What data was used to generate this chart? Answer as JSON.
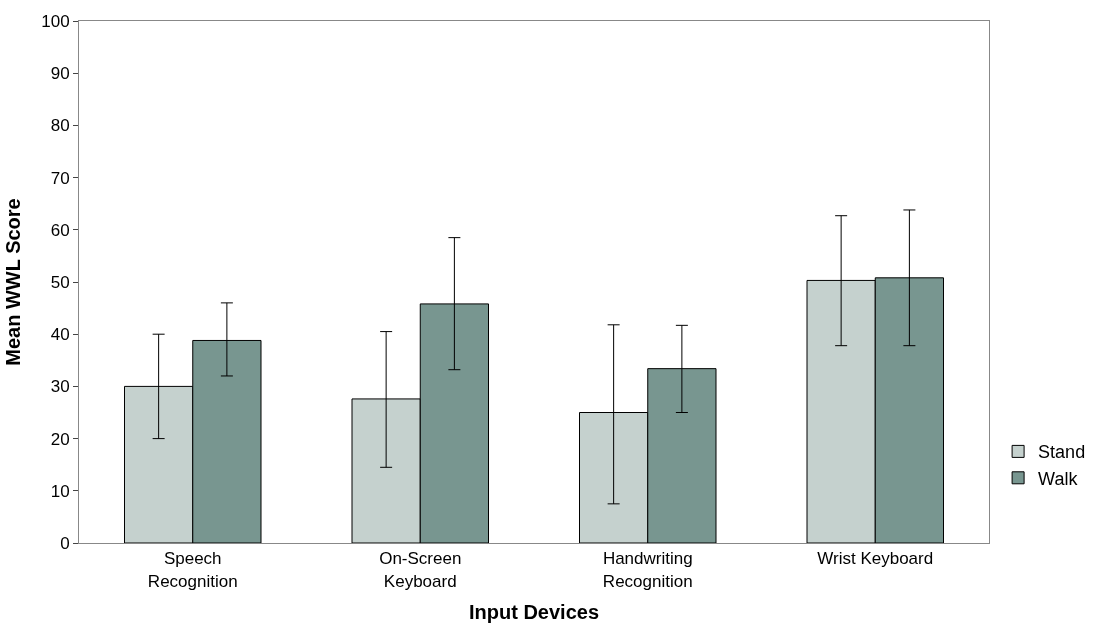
{
  "chart_data": {
    "type": "bar",
    "xlabel": "Input Devices",
    "ylabel": "Mean WWL Score",
    "categories": [
      "Speech Recognition",
      "On-Screen Keyboard",
      "Handwriting Recognition",
      "Wrist Keyboard"
    ],
    "series": [
      {
        "name": "Stand",
        "color": "#c5d1ce",
        "values": [
          30,
          27.6,
          25,
          50.3
        ],
        "errors": [
          [
            20,
            40
          ],
          [
            14.5,
            40.5
          ],
          [
            7.5,
            41.8
          ],
          [
            37.8,
            62.7
          ]
        ]
      },
      {
        "name": "Walk",
        "color": "#789690",
        "values": [
          38.8,
          45.8,
          33.4,
          50.8
        ],
        "errors": [
          [
            32,
            46
          ],
          [
            33.2,
            58.5
          ],
          [
            25,
            41.7
          ],
          [
            37.8,
            63.8
          ]
        ]
      }
    ],
    "ylim": [
      0,
      100
    ],
    "yticks": [
      0,
      10,
      20,
      30,
      40,
      50,
      60,
      70,
      80,
      90,
      100
    ],
    "grid": false,
    "legend": "right"
  }
}
